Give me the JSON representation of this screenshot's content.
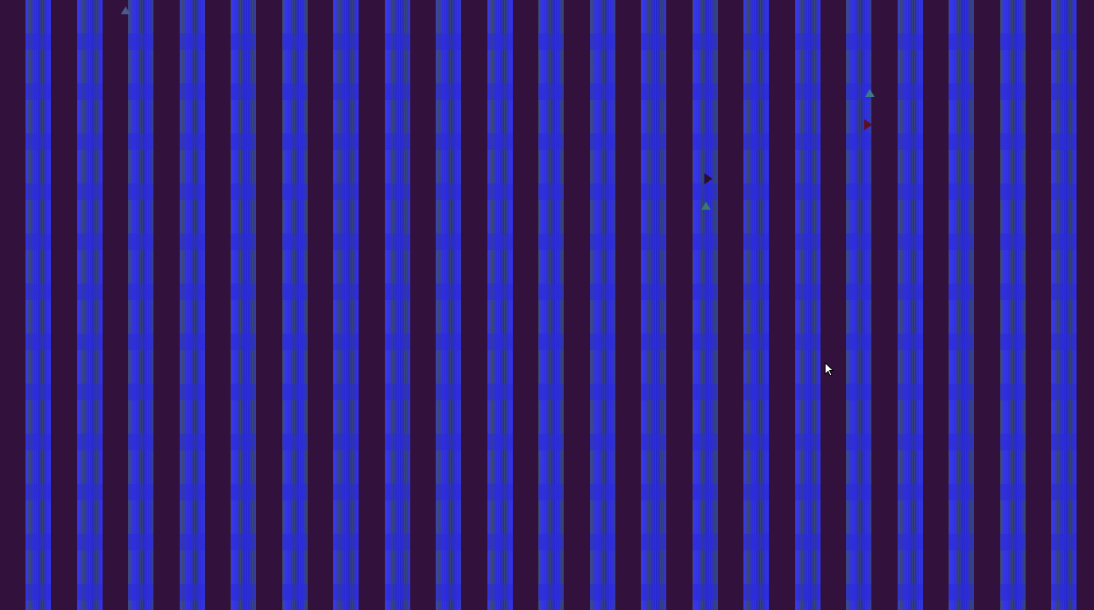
{
  "scene": {
    "background_color": "#33113d",
    "stripe_color": "#2a2ad8",
    "pattern_color": "#3c5046",
    "stripe_count": 21
  },
  "sprites": [
    {
      "name": "triangle-sprite",
      "color": "#4a5a8a"
    },
    {
      "name": "triangle-sprite",
      "color": "#3a7a8a"
    },
    {
      "name": "arrow-sprite",
      "color": "#5a1020"
    },
    {
      "name": "flag-sprite",
      "color": "#2a1020"
    },
    {
      "name": "triangle-sprite",
      "color": "#3a7a6a"
    }
  ],
  "cursor": {
    "icon": "mouse-pointer-icon",
    "color": "#ffffff"
  }
}
